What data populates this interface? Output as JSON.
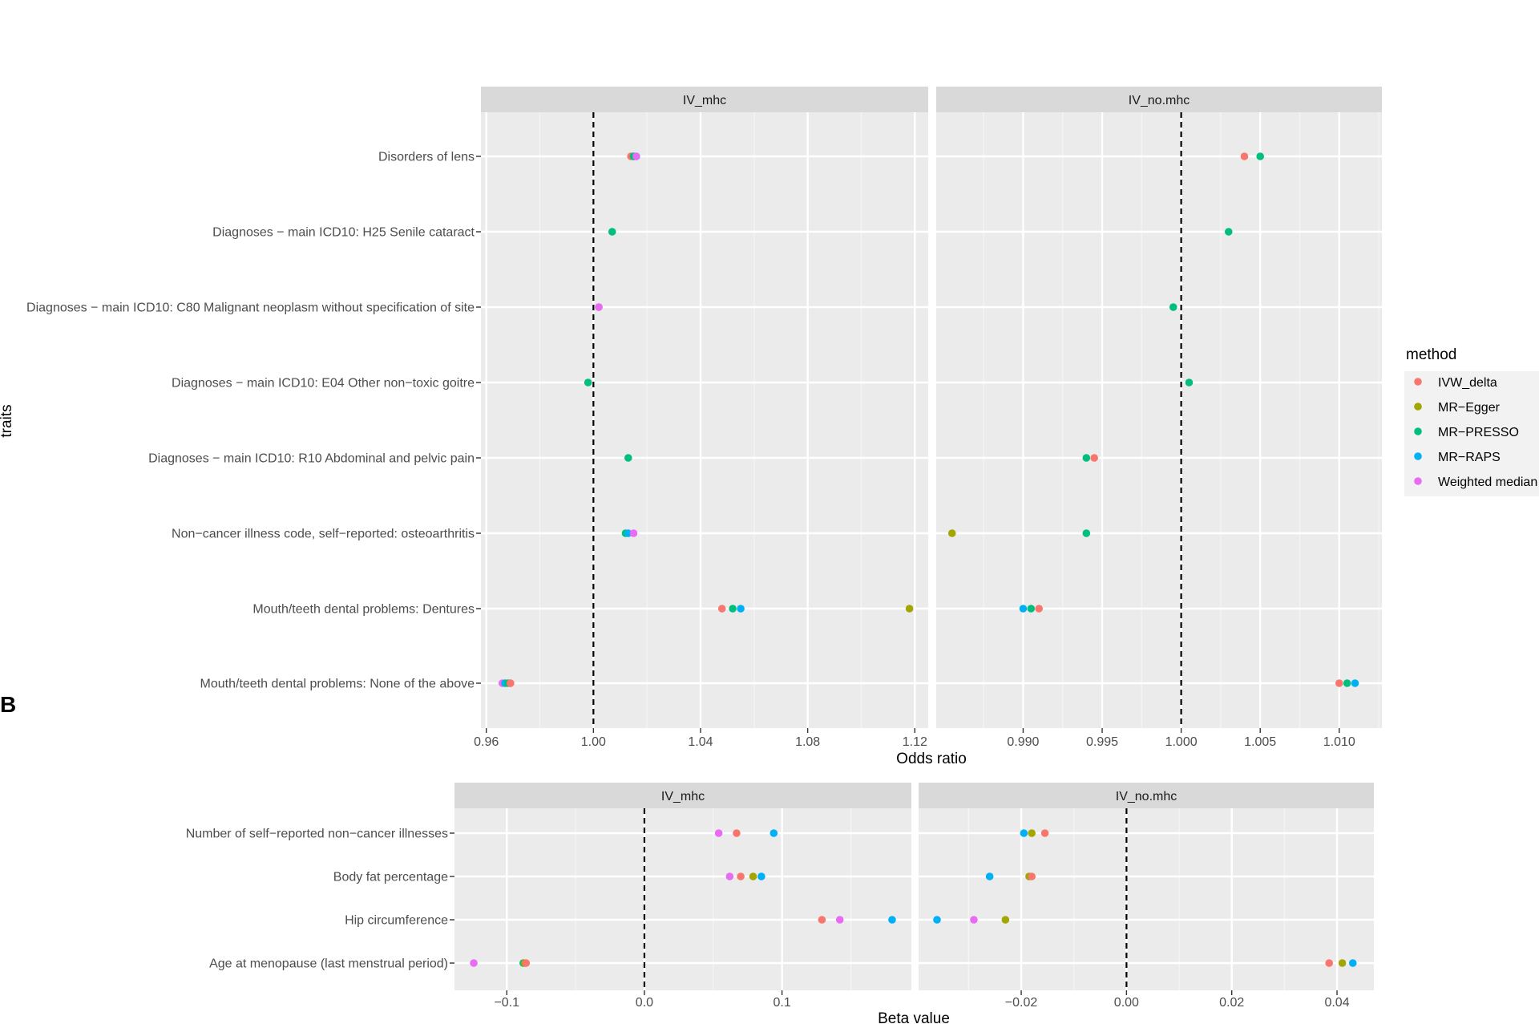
{
  "figure": {
    "panel_label_b": "B",
    "legend": {
      "title": "method",
      "items": [
        {
          "name": "IVW_delta",
          "color": "#F8766D"
        },
        {
          "name": "MR−Egger",
          "color": "#A3A500"
        },
        {
          "name": "MR−PRESSO",
          "color": "#00BF7D"
        },
        {
          "name": "MR−RAPS",
          "color": "#00B0F6"
        },
        {
          "name": "Weighted median",
          "color": "#E76BF3"
        }
      ]
    }
  },
  "chart_data": [
    {
      "type": "scatter",
      "title": "",
      "xlabel": "Odds ratio",
      "ylabel": "traits",
      "reference_line": 1.0,
      "grid": true,
      "legend_position": "right",
      "categories": [
        "Disorders of lens",
        "Diagnoses − main ICD10: H25 Senile cataract",
        "Diagnoses − main ICD10: C80 Malignant neoplasm without specification of site",
        "Diagnoses − main ICD10: E04 Other non−toxic goitre",
        "Diagnoses − main ICD10: R10 Abdominal and pelvic pain",
        "Non−cancer illness code, self−reported: osteoarthritis",
        "Mouth/teeth dental problems: Dentures",
        "Mouth/teeth dental problems: None of the above"
      ],
      "facets": [
        {
          "label": "IV_mhc",
          "xlim": [
            0.958,
            1.125
          ],
          "ticks": [
            0.96,
            1.0,
            1.04,
            1.08,
            1.12
          ],
          "tick_labels": [
            "0.96",
            "1.00",
            "1.04",
            "1.08",
            "1.12"
          ],
          "points": [
            {
              "trait": 0,
              "method": "IVW_delta",
              "x": 1.014
            },
            {
              "trait": 0,
              "method": "MR−Egger",
              "x": 1.015
            },
            {
              "trait": 0,
              "method": "MR−PRESSO",
              "x": 1.015
            },
            {
              "trait": 0,
              "method": "MR−RAPS",
              "x": 1.016
            },
            {
              "trait": 0,
              "method": "Weighted median",
              "x": 1.016
            },
            {
              "trait": 1,
              "method": "MR−PRESSO",
              "x": 1.007
            },
            {
              "trait": 2,
              "method": "IVW_delta",
              "x": 1.002
            },
            {
              "trait": 2,
              "method": "Weighted median",
              "x": 1.002
            },
            {
              "trait": 3,
              "method": "MR−PRESSO",
              "x": 0.998
            },
            {
              "trait": 4,
              "method": "MR−PRESSO",
              "x": 1.013
            },
            {
              "trait": 5,
              "method": "MR−PRESSO",
              "x": 1.012
            },
            {
              "trait": 5,
              "method": "MR−RAPS",
              "x": 1.013
            },
            {
              "trait": 5,
              "method": "Weighted median",
              "x": 1.015
            },
            {
              "trait": 6,
              "method": "IVW_delta",
              "x": 1.048
            },
            {
              "trait": 6,
              "method": "MR−PRESSO",
              "x": 1.052
            },
            {
              "trait": 6,
              "method": "MR−RAPS",
              "x": 1.055
            },
            {
              "trait": 6,
              "method": "MR−Egger",
              "x": 1.118
            },
            {
              "trait": 7,
              "method": "Weighted median",
              "x": 0.966
            },
            {
              "trait": 7,
              "method": "MR−RAPS",
              "x": 0.967
            },
            {
              "trait": 7,
              "method": "MR−PRESSO",
              "x": 0.968
            },
            {
              "trait": 7,
              "method": "MR−Egger",
              "x": 0.969
            },
            {
              "trait": 7,
              "method": "IVW_delta",
              "x": 0.969
            }
          ]
        },
        {
          "label": "IV_no.mhc",
          "xlim": [
            0.9845,
            1.0127
          ],
          "ticks": [
            0.99,
            0.995,
            1.0,
            1.005,
            1.01
          ],
          "tick_labels": [
            "0.990",
            "0.995",
            "1.000",
            "1.005",
            "1.010"
          ],
          "points": [
            {
              "trait": 0,
              "method": "IVW_delta",
              "x": 1.004
            },
            {
              "trait": 0,
              "method": "MR−PRESSO",
              "x": 1.005
            },
            {
              "trait": 1,
              "method": "MR−PRESSO",
              "x": 1.003
            },
            {
              "trait": 2,
              "method": "MR−PRESSO",
              "x": 0.9995
            },
            {
              "trait": 3,
              "method": "MR−PRESSO",
              "x": 1.0005
            },
            {
              "trait": 4,
              "method": "MR−PRESSO",
              "x": 0.994
            },
            {
              "trait": 4,
              "method": "IVW_delta",
              "x": 0.9945
            },
            {
              "trait": 5,
              "method": "MR−Egger",
              "x": 0.9855
            },
            {
              "trait": 5,
              "method": "MR−PRESSO",
              "x": 0.994
            },
            {
              "trait": 6,
              "method": "MR−RAPS",
              "x": 0.99
            },
            {
              "trait": 6,
              "method": "MR−PRESSO",
              "x": 0.9905
            },
            {
              "trait": 6,
              "method": "IVW_delta",
              "x": 0.991
            },
            {
              "trait": 7,
              "method": "IVW_delta",
              "x": 1.01
            },
            {
              "trait": 7,
              "method": "MR−PRESSO",
              "x": 1.0105
            },
            {
              "trait": 7,
              "method": "MR−RAPS",
              "x": 1.011
            }
          ]
        }
      ]
    },
    {
      "type": "scatter",
      "title": "",
      "xlabel": "Beta value",
      "ylabel": "",
      "reference_line": 0.0,
      "grid": true,
      "categories": [
        "Number of self−reported non−cancer illnesses",
        "Body fat percentage",
        "Hip circumference",
        "Age at menopause (last menstrual period)"
      ],
      "facets": [
        {
          "label": "IV_mhc",
          "xlim": [
            -0.138,
            0.194
          ],
          "ticks": [
            -0.1,
            0.0,
            0.1
          ],
          "tick_labels": [
            "−0.1",
            "0.0",
            "0.1"
          ],
          "points": [
            {
              "trait": 0,
              "method": "Weighted median",
              "x": 0.054
            },
            {
              "trait": 0,
              "method": "IVW_delta",
              "x": 0.067
            },
            {
              "trait": 0,
              "method": "MR−RAPS",
              "x": 0.094
            },
            {
              "trait": 1,
              "method": "Weighted median",
              "x": 0.062
            },
            {
              "trait": 1,
              "method": "IVW_delta",
              "x": 0.07
            },
            {
              "trait": 1,
              "method": "MR−Egger",
              "x": 0.079
            },
            {
              "trait": 1,
              "method": "MR−RAPS",
              "x": 0.085
            },
            {
              "trait": 2,
              "method": "IVW_delta",
              "x": 0.129
            },
            {
              "trait": 2,
              "method": "Weighted median",
              "x": 0.142
            },
            {
              "trait": 2,
              "method": "MR−RAPS",
              "x": 0.18
            },
            {
              "trait": 3,
              "method": "Weighted median",
              "x": -0.124
            },
            {
              "trait": 3,
              "method": "MR−PRESSO",
              "x": -0.088
            },
            {
              "trait": 3,
              "method": "MR−Egger",
              "x": -0.087
            },
            {
              "trait": 3,
              "method": "IVW_delta",
              "x": -0.086
            }
          ]
        },
        {
          "label": "IV_no.mhc",
          "xlim": [
            -0.0395,
            0.047
          ],
          "ticks": [
            -0.02,
            0.0,
            0.02,
            0.04
          ],
          "tick_labels": [
            "−0.02",
            "0.00",
            "0.02",
            "0.04"
          ],
          "points": [
            {
              "trait": 0,
              "method": "MR−RAPS",
              "x": -0.0195
            },
            {
              "trait": 0,
              "method": "MR−Egger",
              "x": -0.018
            },
            {
              "trait": 0,
              "method": "IVW_delta",
              "x": -0.0155
            },
            {
              "trait": 1,
              "method": "MR−RAPS",
              "x": -0.026
            },
            {
              "trait": 1,
              "method": "MR−Egger",
              "x": -0.0185
            },
            {
              "trait": 1,
              "method": "IVW_delta",
              "x": -0.018
            },
            {
              "trait": 2,
              "method": "MR−RAPS",
              "x": -0.036
            },
            {
              "trait": 2,
              "method": "Weighted median",
              "x": -0.029
            },
            {
              "trait": 2,
              "method": "MR−Egger",
              "x": -0.023
            },
            {
              "trait": 3,
              "method": "IVW_delta",
              "x": 0.0385
            },
            {
              "trait": 3,
              "method": "MR−Egger",
              "x": 0.041
            },
            {
              "trait": 3,
              "method": "MR−RAPS",
              "x": 0.043
            }
          ]
        }
      ]
    }
  ]
}
